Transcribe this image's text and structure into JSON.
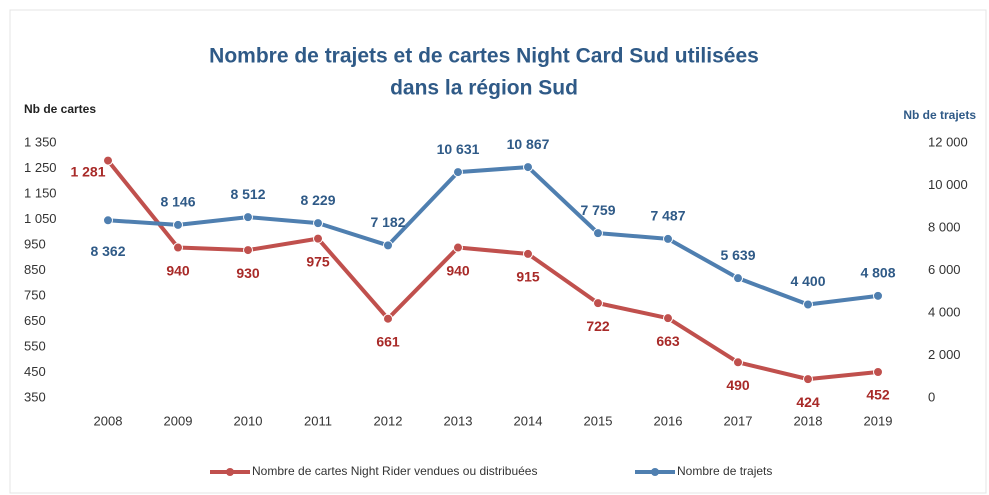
{
  "chart_data": {
    "type": "line",
    "title": [
      "Nombre de trajets et de cartes Night Card Sud utilisées",
      "dans la région Sud"
    ],
    "y_label": "Nb de cartes",
    "y2_label": "Nb de trajets",
    "categories": [
      "2008",
      "2009",
      "2010",
      "2011",
      "2012",
      "2013",
      "2014",
      "2015",
      "2016",
      "2017",
      "2018",
      "2019"
    ],
    "series": [
      {
        "name": "Nombre de cartes Night Rider vendues ou distribuées",
        "color": "#c0504d",
        "label_color": "#a82a28",
        "values": [
          1281,
          940,
          930,
          975,
          661,
          940,
          915,
          722,
          663,
          490,
          424,
          452
        ],
        "value_labels": [
          "1 281",
          "940",
          "930",
          "975",
          "661",
          "940",
          "915",
          "722",
          "663",
          "490",
          "424",
          "452"
        ]
      },
      {
        "name": "Nombre de trajets",
        "color": "#4f7fb0",
        "label_color": "#2f5a87",
        "axis": "y2",
        "values": [
          8362,
          8146,
          8512,
          8229,
          7182,
          10631,
          10867,
          7759,
          7487,
          5639,
          4400,
          4808
        ],
        "value_labels": [
          "8 362",
          "8 146",
          "8 512",
          "8 229",
          "7 182",
          "10 631",
          "10 867",
          "7 759",
          "7 487",
          "5 639",
          "4 400",
          "4 808"
        ]
      }
    ],
    "ylim": [
      350,
      1350
    ],
    "yticks": [
      350,
      450,
      550,
      650,
      750,
      850,
      950,
      {
        "value": 1050,
        "label": "1 050"
      },
      {
        "value": 1150,
        "label": "1 150"
      },
      {
        "value": 1250,
        "label": "1 250"
      },
      {
        "value": 1350,
        "label": "1 350"
      }
    ],
    "y2lim": [
      0,
      12000
    ],
    "y2ticks": [
      0,
      {
        "value": 2000,
        "label": "2 000"
      },
      {
        "value": 4000,
        "label": "4 000"
      },
      {
        "value": 6000,
        "label": "6 000"
      },
      {
        "value": 8000,
        "label": "8 000"
      },
      {
        "value": 10000,
        "label": "10 000"
      },
      {
        "value": 12000,
        "label": "12 000"
      }
    ],
    "grid": false,
    "legend": "bottom"
  }
}
